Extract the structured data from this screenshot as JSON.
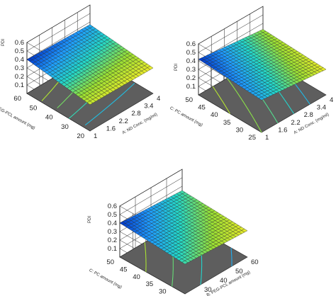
{
  "chart_data": [
    {
      "type": "surface3d",
      "title": "",
      "zlabel": "PDI",
      "xlabel": "A: ND Conc. (mg/ml)",
      "ylabel": "B: PEG-PCL amount (mg)",
      "x_ticks": [
        "1",
        "1.6",
        "2.2",
        "2.8",
        "3.4",
        "4"
      ],
      "y_ticks": [
        "20",
        "30",
        "40",
        "50",
        "60"
      ],
      "z_ticks": [
        "0.1",
        "0.2",
        "0.3",
        "0.4",
        "0.5",
        "0.6"
      ],
      "xlim": [
        1,
        4
      ],
      "ylim": [
        20,
        60
      ],
      "zlim": [
        0,
        0.6
      ],
      "surface_corners": {
        "x1_y20": 0.31,
        "x4_y20": 0.3,
        "x1_y60": 0.4,
        "x4_y60": 0.37
      },
      "contour_levels": [
        0.32,
        0.34,
        0.36,
        0.38
      ]
    },
    {
      "type": "surface3d",
      "title": "",
      "zlabel": "PDI",
      "xlabel": "A: ND Conc. (mg/ml)",
      "ylabel": "C: PC amount (mg)",
      "x_ticks": [
        "1",
        "1.6",
        "2.2",
        "2.8",
        "3.4",
        "4"
      ],
      "y_ticks": [
        "25",
        "30",
        "35",
        "40",
        "45",
        "50"
      ],
      "z_ticks": [
        "0.1",
        "0.2",
        "0.3",
        "0.4",
        "0.5",
        "0.6"
      ],
      "xlim": [
        1,
        4
      ],
      "ylim": [
        25,
        50
      ],
      "zlim": [
        0,
        0.6
      ],
      "surface_corners": {
        "x1_y25": 0.38,
        "x4_y25": 0.3,
        "x1_y50": 0.42,
        "x4_y50": 0.33
      },
      "contour_levels": [
        0.32,
        0.34,
        0.36,
        0.38,
        0.4
      ]
    },
    {
      "type": "surface3d",
      "title": "",
      "zlabel": "PDI",
      "xlabel": "B: PEG-PCL amount (mg)",
      "ylabel": "C: PC amount (mg)",
      "x_ticks": [
        "20",
        "30",
        "40",
        "50",
        "60"
      ],
      "y_ticks": [
        "25",
        "30",
        "35",
        "40",
        "45",
        "50"
      ],
      "z_ticks": [
        "0.1",
        "0.2",
        "0.3",
        "0.4",
        "0.5",
        "0.6"
      ],
      "xlim": [
        20,
        60
      ],
      "ylim": [
        25,
        50
      ],
      "zlim": [
        0,
        0.6
      ],
      "surface_corners": {
        "x20_y25": 0.35,
        "x60_y25": 0.31,
        "x20_y50": 0.4,
        "x60_y50": 0.35
      },
      "contour_levels": [
        0.32,
        0.34,
        0.36,
        0.38
      ]
    }
  ],
  "colors": {
    "floor": "#5e5e5e",
    "wall_grid": "#222222",
    "surface_mesh": "#262626",
    "colormap": [
      "#0034c9",
      "#1e9aff",
      "#24d8c8",
      "#9ae034",
      "#ecec2a"
    ]
  }
}
